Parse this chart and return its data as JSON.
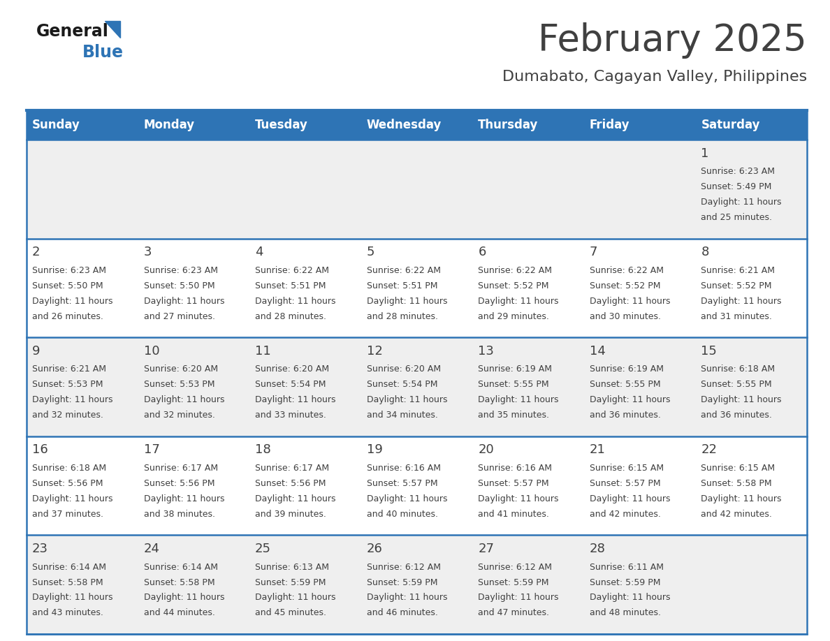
{
  "title": "February 2025",
  "subtitle": "Dumabato, Cagayan Valley, Philippines",
  "days_of_week": [
    "Sunday",
    "Monday",
    "Tuesday",
    "Wednesday",
    "Thursday",
    "Friday",
    "Saturday"
  ],
  "header_bg": "#2E74B5",
  "header_text": "#FFFFFF",
  "row_bg_odd": "#EFEFEF",
  "row_bg_even": "#FFFFFF",
  "separator_color": "#2E74B5",
  "day_number_color": "#404040",
  "cell_text_color": "#404040",
  "title_color": "#404040",
  "subtitle_color": "#404040",
  "calendar_data": [
    [
      null,
      null,
      null,
      null,
      null,
      null,
      {
        "day": 1,
        "sunrise": "6:23 AM",
        "sunset": "5:49 PM",
        "daylight": "11 hours",
        "daylight2": "and 25 minutes."
      }
    ],
    [
      {
        "day": 2,
        "sunrise": "6:23 AM",
        "sunset": "5:50 PM",
        "daylight": "11 hours",
        "daylight2": "and 26 minutes."
      },
      {
        "day": 3,
        "sunrise": "6:23 AM",
        "sunset": "5:50 PM",
        "daylight": "11 hours",
        "daylight2": "and 27 minutes."
      },
      {
        "day": 4,
        "sunrise": "6:22 AM",
        "sunset": "5:51 PM",
        "daylight": "11 hours",
        "daylight2": "and 28 minutes."
      },
      {
        "day": 5,
        "sunrise": "6:22 AM",
        "sunset": "5:51 PM",
        "daylight": "11 hours",
        "daylight2": "and 28 minutes."
      },
      {
        "day": 6,
        "sunrise": "6:22 AM",
        "sunset": "5:52 PM",
        "daylight": "11 hours",
        "daylight2": "and 29 minutes."
      },
      {
        "day": 7,
        "sunrise": "6:22 AM",
        "sunset": "5:52 PM",
        "daylight": "11 hours",
        "daylight2": "and 30 minutes."
      },
      {
        "day": 8,
        "sunrise": "6:21 AM",
        "sunset": "5:52 PM",
        "daylight": "11 hours",
        "daylight2": "and 31 minutes."
      }
    ],
    [
      {
        "day": 9,
        "sunrise": "6:21 AM",
        "sunset": "5:53 PM",
        "daylight": "11 hours",
        "daylight2": "and 32 minutes."
      },
      {
        "day": 10,
        "sunrise": "6:20 AM",
        "sunset": "5:53 PM",
        "daylight": "11 hours",
        "daylight2": "and 32 minutes."
      },
      {
        "day": 11,
        "sunrise": "6:20 AM",
        "sunset": "5:54 PM",
        "daylight": "11 hours",
        "daylight2": "and 33 minutes."
      },
      {
        "day": 12,
        "sunrise": "6:20 AM",
        "sunset": "5:54 PM",
        "daylight": "11 hours",
        "daylight2": "and 34 minutes."
      },
      {
        "day": 13,
        "sunrise": "6:19 AM",
        "sunset": "5:55 PM",
        "daylight": "11 hours",
        "daylight2": "and 35 minutes."
      },
      {
        "day": 14,
        "sunrise": "6:19 AM",
        "sunset": "5:55 PM",
        "daylight": "11 hours",
        "daylight2": "and 36 minutes."
      },
      {
        "day": 15,
        "sunrise": "6:18 AM",
        "sunset": "5:55 PM",
        "daylight": "11 hours",
        "daylight2": "and 36 minutes."
      }
    ],
    [
      {
        "day": 16,
        "sunrise": "6:18 AM",
        "sunset": "5:56 PM",
        "daylight": "11 hours",
        "daylight2": "and 37 minutes."
      },
      {
        "day": 17,
        "sunrise": "6:17 AM",
        "sunset": "5:56 PM",
        "daylight": "11 hours",
        "daylight2": "and 38 minutes."
      },
      {
        "day": 18,
        "sunrise": "6:17 AM",
        "sunset": "5:56 PM",
        "daylight": "11 hours",
        "daylight2": "and 39 minutes."
      },
      {
        "day": 19,
        "sunrise": "6:16 AM",
        "sunset": "5:57 PM",
        "daylight": "11 hours",
        "daylight2": "and 40 minutes."
      },
      {
        "day": 20,
        "sunrise": "6:16 AM",
        "sunset": "5:57 PM",
        "daylight": "11 hours",
        "daylight2": "and 41 minutes."
      },
      {
        "day": 21,
        "sunrise": "6:15 AM",
        "sunset": "5:57 PM",
        "daylight": "11 hours",
        "daylight2": "and 42 minutes."
      },
      {
        "day": 22,
        "sunrise": "6:15 AM",
        "sunset": "5:58 PM",
        "daylight": "11 hours",
        "daylight2": "and 42 minutes."
      }
    ],
    [
      {
        "day": 23,
        "sunrise": "6:14 AM",
        "sunset": "5:58 PM",
        "daylight": "11 hours",
        "daylight2": "and 43 minutes."
      },
      {
        "day": 24,
        "sunrise": "6:14 AM",
        "sunset": "5:58 PM",
        "daylight": "11 hours",
        "daylight2": "and 44 minutes."
      },
      {
        "day": 25,
        "sunrise": "6:13 AM",
        "sunset": "5:59 PM",
        "daylight": "11 hours",
        "daylight2": "and 45 minutes."
      },
      {
        "day": 26,
        "sunrise": "6:12 AM",
        "sunset": "5:59 PM",
        "daylight": "11 hours",
        "daylight2": "and 46 minutes."
      },
      {
        "day": 27,
        "sunrise": "6:12 AM",
        "sunset": "5:59 PM",
        "daylight": "11 hours",
        "daylight2": "and 47 minutes."
      },
      {
        "day": 28,
        "sunrise": "6:11 AM",
        "sunset": "5:59 PM",
        "daylight": "11 hours",
        "daylight2": "and 48 minutes."
      },
      null
    ]
  ],
  "logo_text_general": "General",
  "logo_text_blue": "Blue"
}
